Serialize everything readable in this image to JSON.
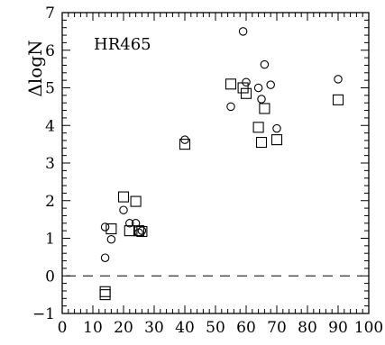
{
  "chart_data": {
    "type": "scatter",
    "title": "",
    "annotation": "HR465",
    "xlabel": "",
    "ylabel": "ΔlogN",
    "xlim": [
      0,
      100
    ],
    "ylim": [
      -1,
      7
    ],
    "x_ticks": [
      0,
      10,
      20,
      30,
      40,
      50,
      60,
      70,
      80,
      90,
      100
    ],
    "y_ticks": [
      -1,
      0,
      1,
      2,
      3,
      4,
      5,
      6,
      7
    ],
    "reference_line": {
      "y": 0,
      "style": "dashed"
    },
    "grid": false,
    "colors": {
      "marker": "#000000",
      "axis": "#000000",
      "background": "#ffffff"
    },
    "series": [
      {
        "marker": "circle",
        "points": [
          [
            14,
            0.48
          ],
          [
            14,
            1.3
          ],
          [
            16,
            0.97
          ],
          [
            20,
            1.75
          ],
          [
            22,
            1.4
          ],
          [
            24,
            1.4
          ],
          [
            25,
            1.15
          ],
          [
            26,
            1.2
          ],
          [
            40,
            3.62
          ],
          [
            55,
            4.5
          ],
          [
            59,
            6.5
          ],
          [
            60,
            5.15
          ],
          [
            64,
            5.0
          ],
          [
            65,
            4.7
          ],
          [
            66,
            5.62
          ],
          [
            68,
            5.08
          ],
          [
            70,
            3.92
          ],
          [
            90,
            5.23
          ]
        ]
      },
      {
        "marker": "square",
        "points": [
          [
            14,
            -0.42
          ],
          [
            14,
            -0.5
          ],
          [
            16,
            1.25
          ],
          [
            20,
            2.1
          ],
          [
            22,
            1.2
          ],
          [
            24,
            1.98
          ],
          [
            25,
            1.2
          ],
          [
            26,
            1.18
          ],
          [
            40,
            3.5
          ],
          [
            55,
            5.1
          ],
          [
            59,
            5.0
          ],
          [
            60,
            4.85
          ],
          [
            64,
            3.95
          ],
          [
            65,
            3.55
          ],
          [
            66,
            4.45
          ],
          [
            70,
            3.62
          ],
          [
            90,
            4.68
          ]
        ]
      }
    ]
  }
}
